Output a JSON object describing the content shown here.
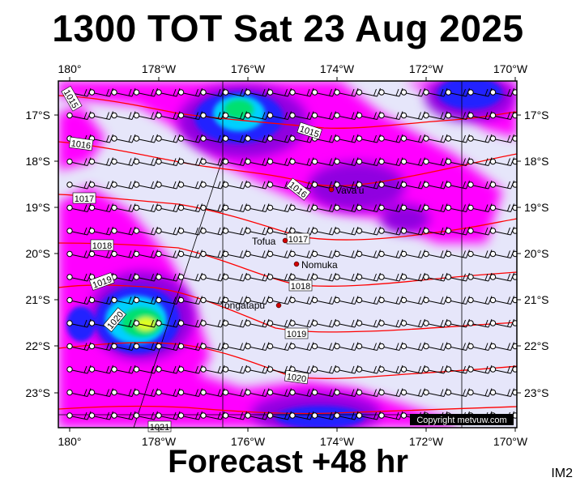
{
  "header": {
    "title": "1300 TOT Sat 23 Aug 2025"
  },
  "footer": {
    "forecast": "Forecast +48 hr",
    "code": "IM2"
  },
  "map": {
    "lon_labels": [
      "180°",
      "178°W",
      "176°W",
      "174°W",
      "172°W",
      "170°W"
    ],
    "lat_labels": [
      "17°S",
      "18°S",
      "19°S",
      "20°S",
      "21°S",
      "22°S",
      "23°S"
    ],
    "isobars": [
      "1015",
      "1015",
      "1016",
      "1016",
      "1017",
      "1017",
      "1018",
      "1018",
      "1019",
      "1019",
      "1020",
      "1020",
      "1021"
    ],
    "places": [
      "Vava'u",
      "Tofua",
      "Nomuka",
      "Tongatapu"
    ],
    "copyright": "Copyright metvuw.com",
    "colors": {
      "background": "#e6e6fa",
      "magenta": "#ff00ff",
      "violet": "#9000e0",
      "blue": "#2020ff",
      "cyan": "#00d0ff",
      "green": "#00e070",
      "yellow": "#e0ff20",
      "isobar": "#ff0000"
    }
  }
}
